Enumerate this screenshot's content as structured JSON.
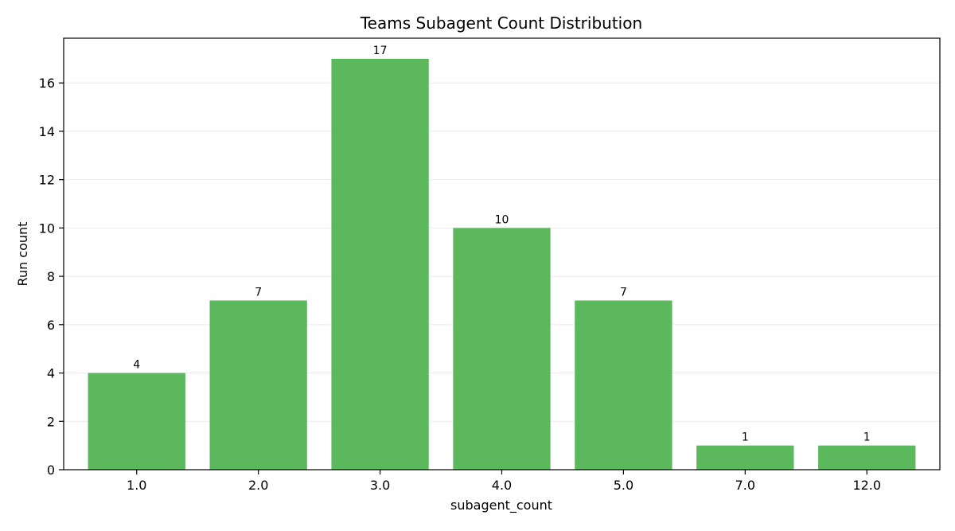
{
  "chart_data": {
    "type": "bar",
    "title": "Teams Subagent Count Distribution",
    "xlabel": "subagent_count",
    "ylabel": "Run count",
    "categories": [
      "1.0",
      "2.0",
      "3.0",
      "4.0",
      "5.0",
      "7.0",
      "12.0"
    ],
    "values": [
      4,
      7,
      17,
      10,
      7,
      1,
      1
    ],
    "data_labels": [
      "4",
      "7",
      "17",
      "10",
      "7",
      "1",
      "1"
    ],
    "ylim": [
      0,
      17.85
    ],
    "yticks": [
      0,
      2,
      4,
      6,
      8,
      10,
      12,
      14,
      16
    ],
    "ytick_labels": [
      "0",
      "2",
      "4",
      "6",
      "8",
      "10",
      "12",
      "14",
      "16"
    ],
    "grid": "horizontal",
    "bar_color": "#5cb85c",
    "grid_color": "#ebebeb"
  }
}
